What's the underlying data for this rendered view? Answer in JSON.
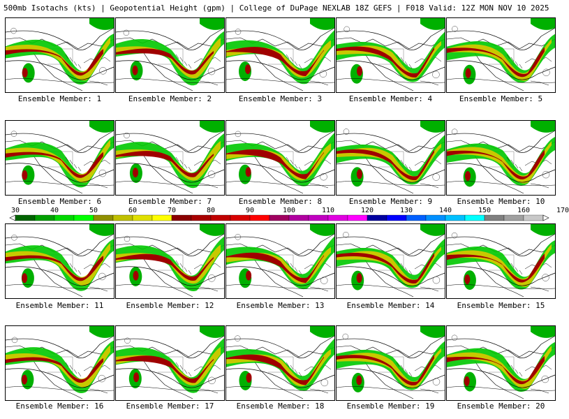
{
  "header": {
    "title": "500mb Isotachs (kts) | Geopotential Height (gpm) | College of DuPage NEXLAB",
    "run": "18Z GEFS | F018 Valid: 12Z MON NOV 10 2025"
  },
  "members": [
    {
      "label": "Ensemble Member: 1"
    },
    {
      "label": "Ensemble Member: 2"
    },
    {
      "label": "Ensemble Member: 3"
    },
    {
      "label": "Ensemble Member: 4"
    },
    {
      "label": "Ensemble Member: 5"
    },
    {
      "label": "Ensemble Member: 6"
    },
    {
      "label": "Ensemble Member: 7"
    },
    {
      "label": "Ensemble Member: 8"
    },
    {
      "label": "Ensemble Member: 9"
    },
    {
      "label": "Ensemble Member: 10"
    },
    {
      "label": "Ensemble Member: 11"
    },
    {
      "label": "Ensemble Member: 12"
    },
    {
      "label": "Ensemble Member: 13"
    },
    {
      "label": "Ensemble Member: 14"
    },
    {
      "label": "Ensemble Member: 15"
    },
    {
      "label": "Ensemble Member: 16"
    },
    {
      "label": "Ensemble Member: 17"
    },
    {
      "label": "Ensemble Member: 18"
    },
    {
      "label": "Ensemble Member: 19"
    },
    {
      "label": "Ensemble Member: 20"
    }
  ],
  "colorbar": {
    "ticks": [
      "30",
      "40",
      "50",
      "60",
      "70",
      "80",
      "90",
      "100",
      "110",
      "120",
      "130",
      "140",
      "150",
      "160",
      "170"
    ],
    "colors": [
      "#006400",
      "#00a000",
      "#00d800",
      "#00ff00",
      "#909000",
      "#c0c000",
      "#e0e000",
      "#ffff00",
      "#8b0000",
      "#a80000",
      "#c00000",
      "#d80000",
      "#ff0000",
      "#a00060",
      "#b000a0",
      "#c000c0",
      "#e000e0",
      "#ff00ff",
      "#0000a0",
      "#0000ff",
      "#0060ff",
      "#0090ff",
      "#00c0ff",
      "#00ffff",
      "#808080",
      "#a0a0a0",
      "#c8c8c8"
    ]
  }
}
